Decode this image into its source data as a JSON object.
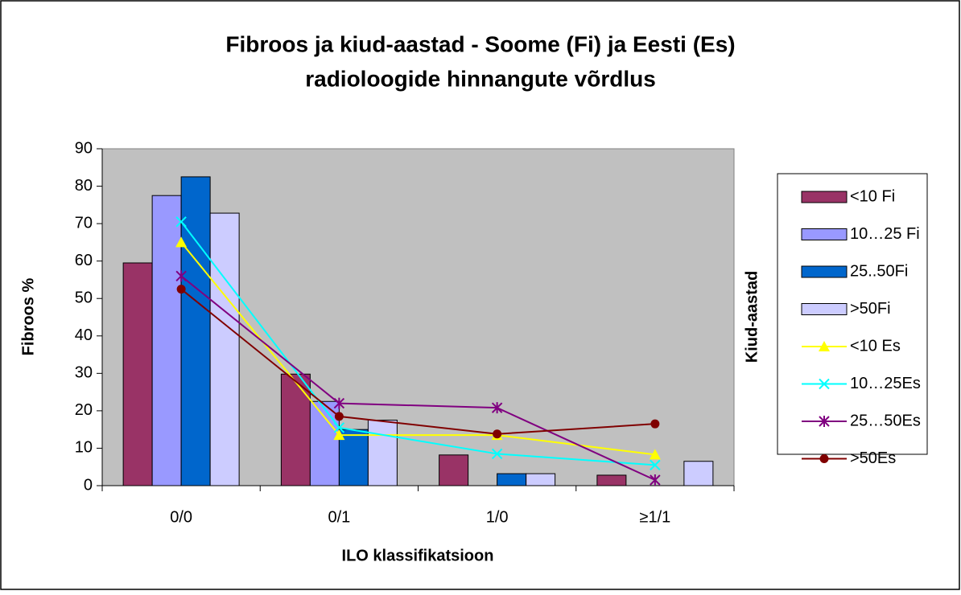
{
  "chart_data": {
    "type": "bar_line",
    "title": [
      "Fibroos ja kiud-aastad  -  Soome (Fi) ja Eesti (Es)",
      "radioloogide hinnangute võrdlus"
    ],
    "x_label": "ILO klassifikatsioon",
    "y_label": "Fibroos %",
    "y2_label": "Kiud-aastad",
    "categories": [
      "0/0",
      "0/1",
      "1/0",
      "≥1/1"
    ],
    "ylim": [
      0,
      90
    ],
    "yticks": [
      0,
      10,
      20,
      30,
      40,
      50,
      60,
      70,
      80,
      90
    ],
    "grid": false,
    "legend": "right",
    "series": [
      {
        "name": "<10 Fi",
        "kind": "bar",
        "color": "#993366",
        "values": [
          59.5,
          29.8,
          8.2,
          2.8
        ]
      },
      {
        "name": "10…25 Fi",
        "kind": "bar",
        "color": "#9999FF",
        "values": [
          77.5,
          22.5,
          0,
          0
        ]
      },
      {
        "name": "25..50Fi",
        "kind": "bar",
        "color": "#0066CC",
        "values": [
          82.5,
          15,
          3.2,
          0
        ]
      },
      {
        "name": ">50Fi",
        "kind": "bar",
        "color": "#CCCCFF",
        "values": [
          72.8,
          17.5,
          3.2,
          6.5
        ]
      },
      {
        "name": "<10 Es",
        "kind": "line",
        "marker": "triangle",
        "color": "#FFFF00",
        "values": [
          65,
          13.5,
          13.5,
          8.3
        ]
      },
      {
        "name": "10…25Es",
        "kind": "line",
        "marker": "x",
        "color": "#00FFFF",
        "values": [
          70.5,
          15.5,
          8.5,
          5.5
        ]
      },
      {
        "name": "25…50Es",
        "kind": "line",
        "marker": "star",
        "color": "#800080",
        "values": [
          56,
          22,
          20.8,
          1.5
        ]
      },
      {
        "name": ">50Es",
        "kind": "line",
        "marker": "circle",
        "color": "#800000",
        "values": [
          52.5,
          18.5,
          13.8,
          16.5
        ]
      }
    ]
  }
}
